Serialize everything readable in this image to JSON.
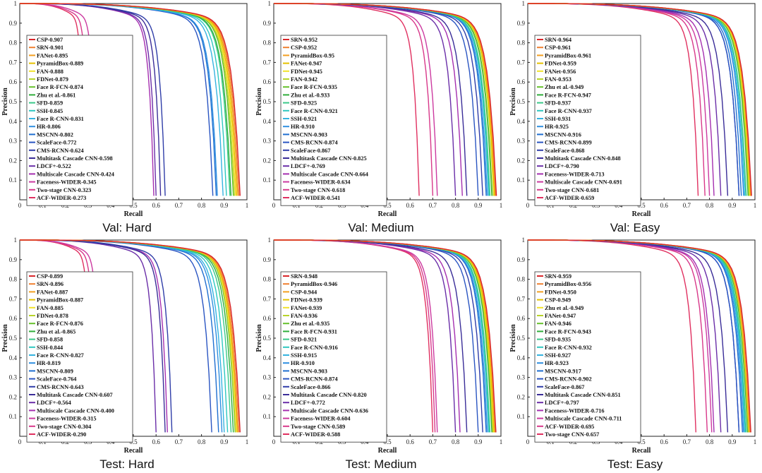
{
  "axis_labels": {
    "x": "Recall",
    "y": "Precision"
  },
  "chart_data": [
    {
      "type": "line",
      "title": "Val: Hard",
      "xlabel": "Recall",
      "ylabel": "Precision",
      "xlim": [
        0,
        1
      ],
      "ylim": [
        0,
        1
      ],
      "grid": false,
      "legend_position": "left",
      "series": [
        {
          "name": "CSP-0.907",
          "color": "#d9262a",
          "recall_end": 0.97,
          "knee": 0.905
        },
        {
          "name": "SRN-0.901",
          "color": "#f08030",
          "recall_end": 0.965,
          "knee": 0.9
        },
        {
          "name": "FANet-0.895",
          "color": "#f4a020",
          "recall_end": 0.96,
          "knee": 0.895
        },
        {
          "name": "PyramidBox-0.889",
          "color": "#e6c200",
          "recall_end": 0.955,
          "knee": 0.89
        },
        {
          "name": "FAN-0.888",
          "color": "#f2e22a",
          "recall_end": 0.95,
          "knee": 0.888
        },
        {
          "name": "FDNet-0.879",
          "color": "#b8d42a",
          "recall_end": 0.945,
          "knee": 0.879
        },
        {
          "name": "Face R-FCN-0.874",
          "color": "#66c12c",
          "recall_end": 0.94,
          "knee": 0.874
        },
        {
          "name": "Zhu et al.-0.861",
          "color": "#2fae3b",
          "recall_end": 0.93,
          "knee": 0.86
        },
        {
          "name": "SFD-0.859",
          "color": "#3bc98a",
          "recall_end": 0.925,
          "knee": 0.858
        },
        {
          "name": "SSH-0.845",
          "color": "#2ec7c0",
          "recall_end": 0.91,
          "knee": 0.845
        },
        {
          "name": "Face R-CNN-0.831",
          "color": "#35b3e0",
          "recall_end": 0.895,
          "knee": 0.83
        },
        {
          "name": "HR-0.806",
          "color": "#2f8fe0",
          "recall_end": 0.87,
          "knee": 0.805
        },
        {
          "name": "MSCNN-0.802",
          "color": "#1f6fd0",
          "recall_end": 0.865,
          "knee": 0.8
        },
        {
          "name": "ScaleFace-0.772",
          "color": "#2a55c2",
          "recall_end": 0.85,
          "knee": 0.77
        },
        {
          "name": "CMS-RCNN-0.624",
          "color": "#2f3da8",
          "recall_end": 0.64,
          "knee": 0.56
        },
        {
          "name": "Multitask Cascade CNN-0.598",
          "color": "#3a2d98",
          "recall_end": 0.62,
          "knee": 0.54
        },
        {
          "name": "LDCF+-0.522",
          "color": "#6a2ea8",
          "recall_end": 0.6,
          "knee": 0.5
        },
        {
          "name": "Multiscale Cascade CNN-0.424",
          "color": "#a52fb0",
          "recall_end": 0.59,
          "knee": 0.4
        },
        {
          "name": "Faceness-WIDER-0.345",
          "color": "#cc3aa0",
          "recall_end": 0.33,
          "knee": 0.28
        },
        {
          "name": "Two-stage CNN-0.323",
          "color": "#d8388a",
          "recall_end": 0.3,
          "knee": 0.25
        },
        {
          "name": "ACF-WIDER-0.273",
          "color": "#e03060",
          "recall_end": 0.28,
          "knee": 0.23
        }
      ]
    },
    {
      "type": "line",
      "title": "Val: Medium",
      "xlabel": "Recall",
      "ylabel": "Precision",
      "xlim": [
        0,
        1
      ],
      "ylim": [
        0,
        1
      ],
      "grid": false,
      "legend_position": "left",
      "series": [
        {
          "name": "SRN-0.952",
          "color": "#d9262a",
          "recall_end": 0.98,
          "knee": 0.95
        },
        {
          "name": "CSP-0.952",
          "color": "#f08030",
          "recall_end": 0.978,
          "knee": 0.95
        },
        {
          "name": "PyramidBox-0.95",
          "color": "#f4a020",
          "recall_end": 0.975,
          "knee": 0.948
        },
        {
          "name": "FANet-0.947",
          "color": "#e6c200",
          "recall_end": 0.972,
          "knee": 0.945
        },
        {
          "name": "FDNet-0.945",
          "color": "#f2e22a",
          "recall_end": 0.97,
          "knee": 0.943
        },
        {
          "name": "FAN-0.942",
          "color": "#b8d42a",
          "recall_end": 0.968,
          "knee": 0.94
        },
        {
          "name": "Face R-FCN-0.935",
          "color": "#66c12c",
          "recall_end": 0.962,
          "knee": 0.933
        },
        {
          "name": "Zhu et al.-0.933",
          "color": "#2fae3b",
          "recall_end": 0.96,
          "knee": 0.93
        },
        {
          "name": "SFD-0.925",
          "color": "#3bc98a",
          "recall_end": 0.952,
          "knee": 0.923
        },
        {
          "name": "Face R-CNN-0.921",
          "color": "#2ec7c0",
          "recall_end": 0.948,
          "knee": 0.92
        },
        {
          "name": "SSH-0.921",
          "color": "#35b3e0",
          "recall_end": 0.946,
          "knee": 0.918
        },
        {
          "name": "HR-0.910",
          "color": "#2f8fe0",
          "recall_end": 0.94,
          "knee": 0.908
        },
        {
          "name": "MSCNN-0.903",
          "color": "#1f6fd0",
          "recall_end": 0.935,
          "knee": 0.9
        },
        {
          "name": "CMS-RCNN-0.874",
          "color": "#2a55c2",
          "recall_end": 0.9,
          "knee": 0.87
        },
        {
          "name": "ScaleFace-0.867",
          "color": "#2f3da8",
          "recall_end": 0.92,
          "knee": 0.86
        },
        {
          "name": "Multitask Cascade CNN-0.825",
          "color": "#3a2d98",
          "recall_end": 0.85,
          "knee": 0.8
        },
        {
          "name": "LDCF+-0.769",
          "color": "#6a2ea8",
          "recall_end": 0.8,
          "knee": 0.75
        },
        {
          "name": "Multiscale Cascade CNN-0.664",
          "color": "#a52fb0",
          "recall_end": 0.83,
          "knee": 0.65
        },
        {
          "name": "Faceness-WIDER-0.634",
          "color": "#cc3aa0",
          "recall_end": 0.72,
          "knee": 0.6
        },
        {
          "name": "Two-stage CNN-0.618",
          "color": "#d8388a",
          "recall_end": 0.7,
          "knee": 0.59
        },
        {
          "name": "ACF-WIDER-0.541",
          "color": "#e03060",
          "recall_end": 0.64,
          "knee": 0.52
        }
      ]
    },
    {
      "type": "line",
      "title": "Val: Easy",
      "xlabel": "Recall",
      "ylabel": "Precision",
      "xlim": [
        0,
        1
      ],
      "ylim": [
        0,
        1
      ],
      "grid": false,
      "legend_position": "left",
      "series": [
        {
          "name": "SRN-0.964",
          "color": "#d9262a",
          "recall_end": 0.985,
          "knee": 0.962
        },
        {
          "name": "CSP-0.961",
          "color": "#f08030",
          "recall_end": 0.983,
          "knee": 0.96
        },
        {
          "name": "PyramidBox-0.961",
          "color": "#f4a020",
          "recall_end": 0.982,
          "knee": 0.959
        },
        {
          "name": "FDNet-0.959",
          "color": "#e6c200",
          "recall_end": 0.98,
          "knee": 0.957
        },
        {
          "name": "FANet-0.956",
          "color": "#f2e22a",
          "recall_end": 0.978,
          "knee": 0.954
        },
        {
          "name": "FAN-0.953",
          "color": "#b8d42a",
          "recall_end": 0.975,
          "knee": 0.951
        },
        {
          "name": "Zhu et al.-0.949",
          "color": "#66c12c",
          "recall_end": 0.972,
          "knee": 0.947
        },
        {
          "name": "Face R-FCN-0.947",
          "color": "#2fae3b",
          "recall_end": 0.97,
          "knee": 0.945
        },
        {
          "name": "SFD-0.937",
          "color": "#3bc98a",
          "recall_end": 0.962,
          "knee": 0.935
        },
        {
          "name": "Face R-CNN-0.937",
          "color": "#2ec7c0",
          "recall_end": 0.96,
          "knee": 0.935
        },
        {
          "name": "SSH-0.931",
          "color": "#35b3e0",
          "recall_end": 0.955,
          "knee": 0.928
        },
        {
          "name": "HR-0.925",
          "color": "#2f8fe0",
          "recall_end": 0.95,
          "knee": 0.922
        },
        {
          "name": "MSCNN-0.916",
          "color": "#1f6fd0",
          "recall_end": 0.94,
          "knee": 0.913
        },
        {
          "name": "CMS-RCNN-0.899",
          "color": "#2a55c2",
          "recall_end": 0.93,
          "knee": 0.895
        },
        {
          "name": "ScaleFace-0.868",
          "color": "#2f3da8",
          "recall_end": 0.93,
          "knee": 0.86
        },
        {
          "name": "Multitask Cascade CNN-0.848",
          "color": "#3a2d98",
          "recall_end": 0.88,
          "knee": 0.83
        },
        {
          "name": "LDCF+-0.790",
          "color": "#6a2ea8",
          "recall_end": 0.85,
          "knee": 0.78
        },
        {
          "name": "Faceness-WIDER-0.713",
          "color": "#a52fb0",
          "recall_end": 0.82,
          "knee": 0.7
        },
        {
          "name": "Multiscale Cascade CNN-0.691",
          "color": "#cc3aa0",
          "recall_end": 0.8,
          "knee": 0.68
        },
        {
          "name": "Two-stage CNN-0.681",
          "color": "#d8388a",
          "recall_end": 0.78,
          "knee": 0.67
        },
        {
          "name": "ACF-WIDER-0.659",
          "color": "#e03060",
          "recall_end": 0.75,
          "knee": 0.64
        }
      ]
    },
    {
      "type": "line",
      "title": "Test: Hard",
      "xlabel": "Recall",
      "ylabel": "Precision",
      "xlim": [
        0,
        1
      ],
      "ylim": [
        0,
        1
      ],
      "grid": false,
      "legend_position": "left",
      "series": [
        {
          "name": "CSP-0.899",
          "color": "#d9262a",
          "recall_end": 0.97,
          "knee": 0.9
        },
        {
          "name": "SRN-0.896",
          "color": "#f08030",
          "recall_end": 0.965,
          "knee": 0.895
        },
        {
          "name": "FANet-0.887",
          "color": "#f4a020",
          "recall_end": 0.96,
          "knee": 0.888
        },
        {
          "name": "PyramidBox-0.887",
          "color": "#e6c200",
          "recall_end": 0.958,
          "knee": 0.886
        },
        {
          "name": "FAN-0.885",
          "color": "#f2e22a",
          "recall_end": 0.955,
          "knee": 0.884
        },
        {
          "name": "FDNet-0.878",
          "color": "#b8d42a",
          "recall_end": 0.95,
          "knee": 0.877
        },
        {
          "name": "Face R-FCN-0.876",
          "color": "#66c12c",
          "recall_end": 0.948,
          "knee": 0.875
        },
        {
          "name": "Zhu et al.-0.865",
          "color": "#2fae3b",
          "recall_end": 0.94,
          "knee": 0.864
        },
        {
          "name": "SFD-0.858",
          "color": "#3bc98a",
          "recall_end": 0.93,
          "knee": 0.857
        },
        {
          "name": "SSH-0.844",
          "color": "#2ec7c0",
          "recall_end": 0.915,
          "knee": 0.843
        },
        {
          "name": "Face R-CNN-0.827",
          "color": "#35b3e0",
          "recall_end": 0.9,
          "knee": 0.826
        },
        {
          "name": "HR-0.819",
          "color": "#2f8fe0",
          "recall_end": 0.89,
          "knee": 0.818
        },
        {
          "name": "MSCNN-0.809",
          "color": "#1f6fd0",
          "recall_end": 0.875,
          "knee": 0.808
        },
        {
          "name": "ScaleFace-0.764",
          "color": "#2a55c2",
          "recall_end": 0.845,
          "knee": 0.76
        },
        {
          "name": "CMS-RCNN-0.643",
          "color": "#2f3da8",
          "recall_end": 0.67,
          "knee": 0.58
        },
        {
          "name": "Multitask Cascade CNN-0.607",
          "color": "#3a2d98",
          "recall_end": 0.64,
          "knee": 0.55
        },
        {
          "name": "LDCF+-0.564",
          "color": "#6a2ea8",
          "recall_end": 0.6,
          "knee": 0.52
        },
        {
          "name": "Multiscale Cascade CNN-0.400",
          "color": "#a52fb0",
          "recall_end": 0.65,
          "knee": 0.38
        },
        {
          "name": "Faceness-WIDER-0.315",
          "color": "#cc3aa0",
          "recall_end": 0.35,
          "knee": 0.27
        },
        {
          "name": "Two-stage CNN-0.304",
          "color": "#d8388a",
          "recall_end": 0.33,
          "knee": 0.26
        },
        {
          "name": "ACF-WIDER-0.290",
          "color": "#e03060",
          "recall_end": 0.31,
          "knee": 0.24
        }
      ]
    },
    {
      "type": "line",
      "title": "Test: Medium",
      "xlabel": "Recall",
      "ylabel": "Precision",
      "xlim": [
        0,
        1
      ],
      "ylim": [
        0,
        1
      ],
      "grid": false,
      "legend_position": "left",
      "series": [
        {
          "name": "SRN-0.948",
          "color": "#d9262a",
          "recall_end": 0.978,
          "knee": 0.946
        },
        {
          "name": "PyramidBox-0.946",
          "color": "#f08030",
          "recall_end": 0.976,
          "knee": 0.944
        },
        {
          "name": "CSP-0.944",
          "color": "#f4a020",
          "recall_end": 0.974,
          "knee": 0.942
        },
        {
          "name": "FDNet-0.939",
          "color": "#e6c200",
          "recall_end": 0.97,
          "knee": 0.937
        },
        {
          "name": "FANet-0.939",
          "color": "#f2e22a",
          "recall_end": 0.968,
          "knee": 0.937
        },
        {
          "name": "FAN-0.936",
          "color": "#b8d42a",
          "recall_end": 0.965,
          "knee": 0.934
        },
        {
          "name": "Zhu et al.-0.935",
          "color": "#66c12c",
          "recall_end": 0.963,
          "knee": 0.933
        },
        {
          "name": "Face R-FCN-0.931",
          "color": "#2fae3b",
          "recall_end": 0.96,
          "knee": 0.929
        },
        {
          "name": "SFD-0.921",
          "color": "#3bc98a",
          "recall_end": 0.952,
          "knee": 0.919
        },
        {
          "name": "Face R-CNN-0.916",
          "color": "#2ec7c0",
          "recall_end": 0.948,
          "knee": 0.914
        },
        {
          "name": "SSH-0.915",
          "color": "#35b3e0",
          "recall_end": 0.946,
          "knee": 0.913
        },
        {
          "name": "HR-0.910",
          "color": "#2f8fe0",
          "recall_end": 0.94,
          "knee": 0.908
        },
        {
          "name": "MSCNN-0.903",
          "color": "#1f6fd0",
          "recall_end": 0.935,
          "knee": 0.9
        },
        {
          "name": "CMS-RCNN-0.874",
          "color": "#2a55c2",
          "recall_end": 0.9,
          "knee": 0.87
        },
        {
          "name": "ScaleFace-0.866",
          "color": "#2f3da8",
          "recall_end": 0.92,
          "knee": 0.86
        },
        {
          "name": "Multitask Cascade CNN-0.820",
          "color": "#3a2d98",
          "recall_end": 0.85,
          "knee": 0.8
        },
        {
          "name": "LDCF+-0.772",
          "color": "#6a2ea8",
          "recall_end": 0.8,
          "knee": 0.75
        },
        {
          "name": "Multiscale Cascade CNN-0.636",
          "color": "#a52fb0",
          "recall_end": 0.82,
          "knee": 0.62
        },
        {
          "name": "Faceness-WIDER-0.604",
          "color": "#cc3aa0",
          "recall_end": 0.72,
          "knee": 0.59
        },
        {
          "name": "Two-stage CNN-0.589",
          "color": "#d8388a",
          "recall_end": 0.71,
          "knee": 0.57
        },
        {
          "name": "ACF-WIDER-0.588",
          "color": "#e03060",
          "recall_end": 0.7,
          "knee": 0.56
        }
      ]
    },
    {
      "type": "line",
      "title": "Test: Easy",
      "xlabel": "Recall",
      "ylabel": "Precision",
      "xlim": [
        0,
        1
      ],
      "ylim": [
        0,
        1
      ],
      "grid": false,
      "legend_position": "left",
      "series": [
        {
          "name": "SRN-0.959",
          "color": "#d9262a",
          "recall_end": 0.982,
          "knee": 0.957
        },
        {
          "name": "PyramidBox-0.956",
          "color": "#f08030",
          "recall_end": 0.98,
          "knee": 0.954
        },
        {
          "name": "FDNet-0.950",
          "color": "#f4a020",
          "recall_end": 0.976,
          "knee": 0.948
        },
        {
          "name": "CSP-0.949",
          "color": "#e6c200",
          "recall_end": 0.975,
          "knee": 0.947
        },
        {
          "name": "Zhu et al.-0.949",
          "color": "#f2e22a",
          "recall_end": 0.974,
          "knee": 0.947
        },
        {
          "name": "FANet-0.947",
          "color": "#b8d42a",
          "recall_end": 0.972,
          "knee": 0.945
        },
        {
          "name": "FAN-0.946",
          "color": "#66c12c",
          "recall_end": 0.97,
          "knee": 0.944
        },
        {
          "name": "Face R-FCN-0.943",
          "color": "#2fae3b",
          "recall_end": 0.968,
          "knee": 0.941
        },
        {
          "name": "SFD-0.935",
          "color": "#3bc98a",
          "recall_end": 0.962,
          "knee": 0.933
        },
        {
          "name": "Face R-CNN-0.932",
          "color": "#2ec7c0",
          "recall_end": 0.958,
          "knee": 0.93
        },
        {
          "name": "SSH-0.927",
          "color": "#35b3e0",
          "recall_end": 0.955,
          "knee": 0.925
        },
        {
          "name": "HR-0.923",
          "color": "#2f8fe0",
          "recall_end": 0.95,
          "knee": 0.92
        },
        {
          "name": "MSCNN-0.917",
          "color": "#1f6fd0",
          "recall_end": 0.945,
          "knee": 0.914
        },
        {
          "name": "CMS-RCNN-0.902",
          "color": "#2a55c2",
          "recall_end": 0.93,
          "knee": 0.898
        },
        {
          "name": "ScaleFace-0.867",
          "color": "#2f3da8",
          "recall_end": 0.93,
          "knee": 0.86
        },
        {
          "name": "Multitask Cascade CNN-0.851",
          "color": "#3a2d98",
          "recall_end": 0.88,
          "knee": 0.83
        },
        {
          "name": "LDCF+-0.797",
          "color": "#6a2ea8",
          "recall_end": 0.85,
          "knee": 0.78
        },
        {
          "name": "Faceness-WIDER-0.716",
          "color": "#a52fb0",
          "recall_end": 0.82,
          "knee": 0.7
        },
        {
          "name": "Multiscale Cascade CNN-0.711",
          "color": "#cc3aa0",
          "recall_end": 0.81,
          "knee": 0.69
        },
        {
          "name": "ACF-WIDER-0.695",
          "color": "#d8388a",
          "recall_end": 0.79,
          "knee": 0.68
        },
        {
          "name": "Two-stage CNN-0.657",
          "color": "#e03060",
          "recall_end": 0.74,
          "knee": 0.64
        }
      ]
    }
  ]
}
